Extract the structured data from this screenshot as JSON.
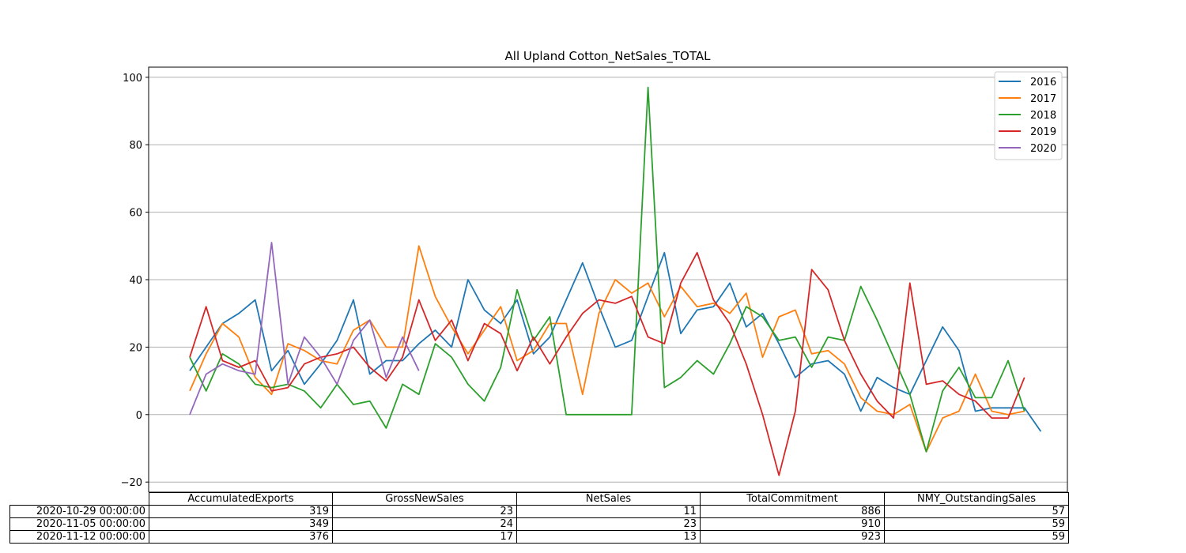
{
  "chart_data": {
    "type": "line",
    "title": "All Upland Cotton_NetSales_TOTAL",
    "xlabel": "",
    "ylabel": "",
    "ylim": [
      -23,
      103
    ],
    "yticks": [
      -20,
      0,
      20,
      40,
      60,
      80,
      100
    ],
    "ytick_labels": [
      "−20",
      "0",
      "20",
      "40",
      "60",
      "80",
      "100"
    ],
    "x_count": 53,
    "grid": "horizontal",
    "legend_position": "top-right",
    "series": [
      {
        "name": "2016",
        "color": "#1f77b4",
        "values": [
          13,
          20,
          27,
          30,
          34,
          13,
          19,
          9,
          15,
          22,
          34,
          12,
          16,
          16,
          21,
          25,
          20,
          40,
          31,
          27,
          34,
          18,
          23,
          34,
          45,
          32,
          20,
          22,
          35,
          48,
          24,
          31,
          32,
          39,
          26,
          30,
          21,
          11,
          15,
          16,
          12,
          1,
          11,
          8,
          6,
          16,
          26,
          19,
          1,
          2,
          2,
          2,
          -5
        ]
      },
      {
        "name": "2017",
        "color": "#ff7f0e",
        "values": [
          7,
          18,
          27,
          23,
          11,
          6,
          21,
          19,
          16,
          15,
          25,
          28,
          20,
          20,
          50,
          35,
          26,
          18,
          25,
          32,
          16,
          19,
          27,
          27,
          6,
          30,
          40,
          36,
          39,
          29,
          38,
          32,
          33,
          30,
          36,
          17,
          29,
          31,
          18,
          19,
          15,
          5,
          1,
          0,
          3,
          -11,
          -1,
          1,
          12,
          1,
          0,
          1
        ]
      },
      {
        "name": "2018",
        "color": "#2ca02c",
        "values": [
          17,
          7,
          18,
          15,
          9,
          8,
          9,
          7,
          2,
          9,
          3,
          4,
          -4,
          9,
          6,
          21,
          17,
          9,
          4,
          14,
          37,
          22,
          29,
          0,
          0,
          0,
          0,
          0,
          97,
          8,
          11,
          16,
          12,
          21,
          32,
          29,
          22,
          23,
          14,
          23,
          22,
          38,
          28,
          17,
          6,
          -11,
          7,
          14,
          5,
          5,
          16,
          1
        ]
      },
      {
        "name": "2019",
        "color": "#d62728",
        "values": [
          17,
          32,
          16,
          14,
          16,
          7,
          8,
          15,
          17,
          18,
          20,
          14,
          10,
          17,
          34,
          22,
          28,
          16,
          27,
          24,
          13,
          23,
          15,
          23,
          30,
          34,
          33,
          35,
          23,
          21,
          39,
          48,
          34,
          27,
          15,
          0,
          -18,
          1,
          43,
          37,
          22,
          12,
          4,
          -1,
          39,
          9,
          10,
          6,
          4,
          -1,
          -1,
          11
        ]
      },
      {
        "name": "2020",
        "color": "#9467bd",
        "values": [
          0,
          12,
          15,
          13,
          12,
          51,
          9,
          23,
          17,
          9,
          22,
          28,
          11,
          23,
          13
        ]
      }
    ]
  },
  "table": {
    "columns": [
      "AccumulatedExports",
      "GrossNewSales",
      "NetSales",
      "TotalCommitment",
      "NMY_OutstandingSales"
    ],
    "rows": [
      {
        "label": "2020-10-29 00:00:00",
        "cells": [
          "319",
          "23",
          "11",
          "886",
          "57"
        ]
      },
      {
        "label": "2020-11-05 00:00:00",
        "cells": [
          "349",
          "24",
          "23",
          "910",
          "59"
        ]
      },
      {
        "label": "2020-11-12 00:00:00",
        "cells": [
          "376",
          "17",
          "13",
          "923",
          "59"
        ]
      }
    ]
  }
}
